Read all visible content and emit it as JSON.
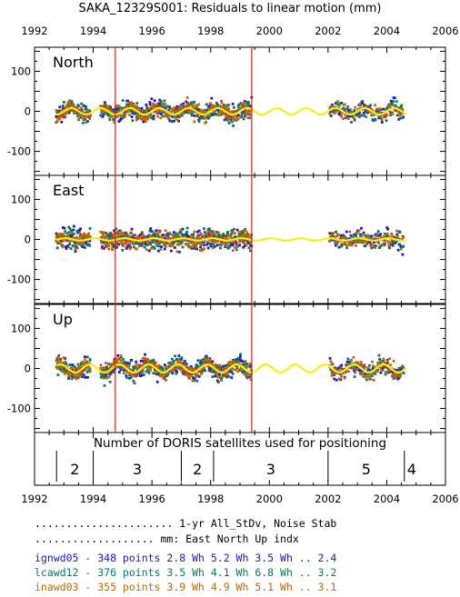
{
  "chart_data": {
    "type": "scatter",
    "title": "SAKA_12329S001: Residuals to linear motion (mm)",
    "x_ticks": [
      1992,
      1994,
      1996,
      1998,
      2000,
      2002,
      2004,
      2006
    ],
    "xlim": [
      1992,
      2006
    ],
    "ylim": [
      -160,
      160
    ],
    "y_ticks": [
      100,
      0,
      -100
    ],
    "vlines": [
      1994.75,
      1999.4
    ],
    "gap": [
      1999.4,
      2002.05
    ],
    "panels": [
      {
        "label": "North",
        "amp": 8,
        "phase": 0.0
      },
      {
        "label": "East",
        "amp": 3,
        "phase": 1.2
      },
      {
        "label": "Up",
        "amp": 10,
        "phase": 2.3
      }
    ],
    "series": [
      {
        "name": "ignwd05",
        "color": "#1a1acc",
        "points": 348,
        "spread": [
          28,
          30,
          28
        ]
      },
      {
        "name": "lcawd12",
        "color": "#007a6a",
        "points": 376,
        "spread": [
          26,
          28,
          26
        ]
      },
      {
        "name": "inawd03",
        "color": "#c06a00",
        "points": 355,
        "spread": [
          24,
          26,
          24
        ]
      }
    ],
    "accent_colors": {
      "signal": "#f5ef1a",
      "extra_points": "#dd2222",
      "separator": "#cc2222"
    },
    "satellites": {
      "caption": "Number of DORIS satellites used for positioning",
      "boundaries": [
        1992.75,
        1994.0,
        1997.0,
        1998.1,
        2002.0,
        2004.6
      ],
      "segments": [
        {
          "from": 1992.75,
          "to": 1994.0,
          "count": "2"
        },
        {
          "from": 1994.0,
          "to": 1997.0,
          "count": "3"
        },
        {
          "from": 1997.0,
          "to": 1998.1,
          "count": "2"
        },
        {
          "from": 1998.1,
          "to": 2002.0,
          "count": "3"
        },
        {
          "from": 2002.0,
          "to": 2004.6,
          "count": "5"
        },
        {
          "from": 2004.6,
          "to": 2006.0,
          "count": "4"
        }
      ]
    }
  },
  "stats": {
    "header1": "...................... 1-yr All_StDv, Noise     Stab",
    "header2": "................... mm:  East  North   Up       indx",
    "rows": [
      {
        "text": "ignwd05 - 348 points   2.8 Wh  5.2 Wh  3.5 Wh ..  2.4",
        "color": "#1a1acc"
      },
      {
        "text": "lcawd12 - 376 points   3.5 Wh  4.1 Wh  6.8 Wh ..  3.2",
        "color": "#007a6a"
      },
      {
        "text": "inawd03 - 355 points   3.9 Wh  4.9 Wh  5.1 Wh ..  3.1",
        "color": "#c06a00"
      }
    ]
  }
}
